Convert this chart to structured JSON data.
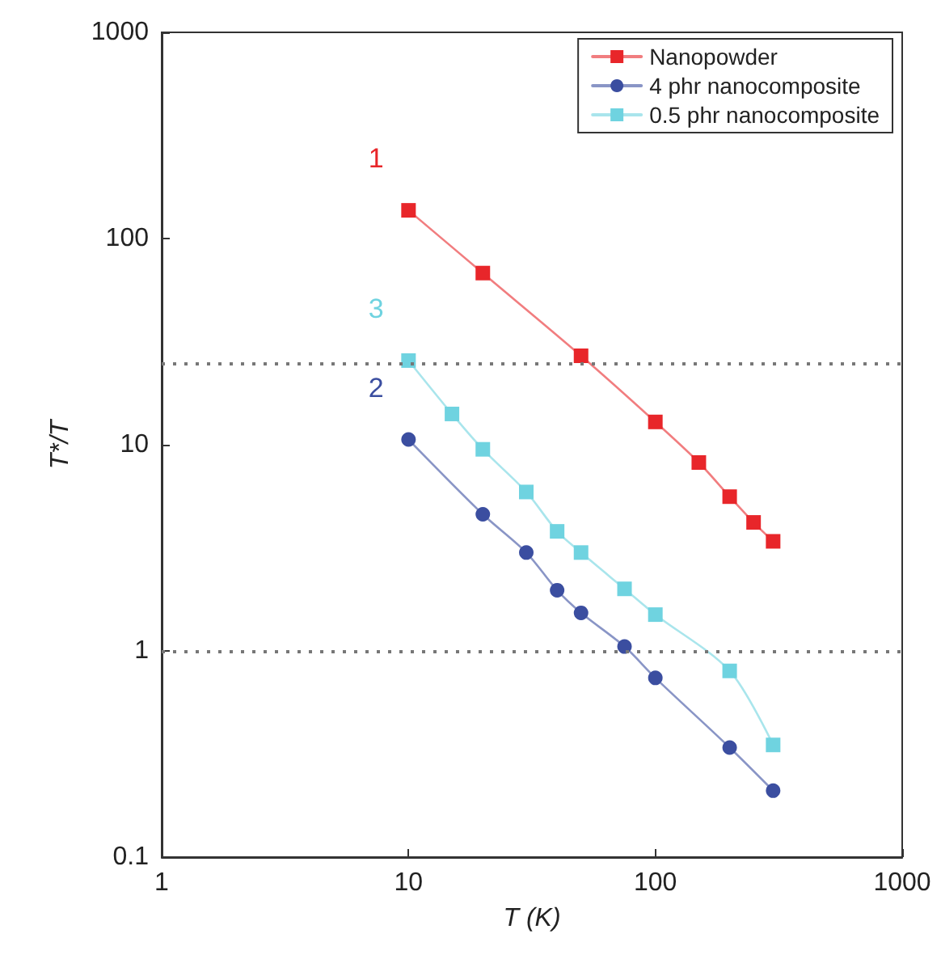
{
  "chart_data": {
    "type": "line",
    "xlabel": "T (K)",
    "ylabel": "T*/T",
    "log": "xy",
    "xlim": [
      1,
      1000
    ],
    "xticks": [
      1,
      10,
      100,
      1000
    ],
    "ylim": [
      0.1,
      1000
    ],
    "yticks": [
      0.1,
      1,
      10,
      100,
      1000
    ],
    "grid": false,
    "legend": "top right",
    "series": [
      {
        "name": "Nanopowder",
        "color": "#e8262a",
        "marker": "square",
        "x": [
          10,
          20,
          50,
          100,
          150,
          200,
          250,
          300
        ],
        "values": [
          137,
          68,
          27,
          12.9,
          8.2,
          5.6,
          4.2,
          3.4
        ]
      },
      {
        "name": "4 phr nanocomposite",
        "color": "#3b4ea0",
        "marker": "circle",
        "x": [
          10,
          20,
          30,
          40,
          50,
          75,
          100,
          200,
          300
        ],
        "values": [
          10.6,
          4.6,
          3.0,
          1.97,
          1.53,
          1.05,
          0.74,
          0.34,
          0.21
        ]
      },
      {
        "name": "0.5 phr nanocomposite",
        "color": "#6fd3e0",
        "marker": "square",
        "x": [
          10,
          15,
          20,
          30,
          40,
          50,
          75,
          100,
          200,
          300
        ],
        "values": [
          25.6,
          14.1,
          9.5,
          5.9,
          3.8,
          3.0,
          2.0,
          1.5,
          0.8,
          0.35
        ]
      }
    ],
    "ref_lines": [
      {
        "axis": "y",
        "value": 25,
        "color": "#777777",
        "line_style": "dotted"
      },
      {
        "axis": "y",
        "value": 1,
        "color": "#777777",
        "line_style": "dotted"
      }
    ],
    "annotations": [
      "1",
      "2",
      "3"
    ]
  }
}
